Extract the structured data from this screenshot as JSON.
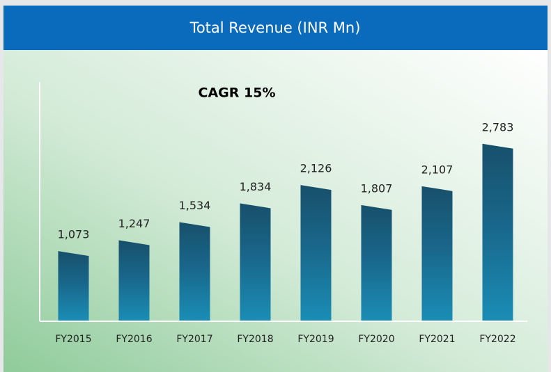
{
  "chart_data": {
    "type": "bar",
    "title": "Total Revenue (INR Mn)",
    "annotation": "CAGR 15%",
    "categories": [
      "FY2015",
      "FY2016",
      "FY2017",
      "FY2018",
      "FY2019",
      "FY2020",
      "FY2021",
      "FY2022"
    ],
    "values": [
      1073,
      1247,
      1534,
      1834,
      2126,
      1807,
      2107,
      2783
    ],
    "value_labels": [
      "1,073",
      "1,247",
      "1,534",
      "1,834",
      "2,126",
      "1,807",
      "2,107",
      "2,783"
    ],
    "color": "#1a6a8c",
    "ylim": [
      0,
      3800
    ],
    "grid": false
  }
}
